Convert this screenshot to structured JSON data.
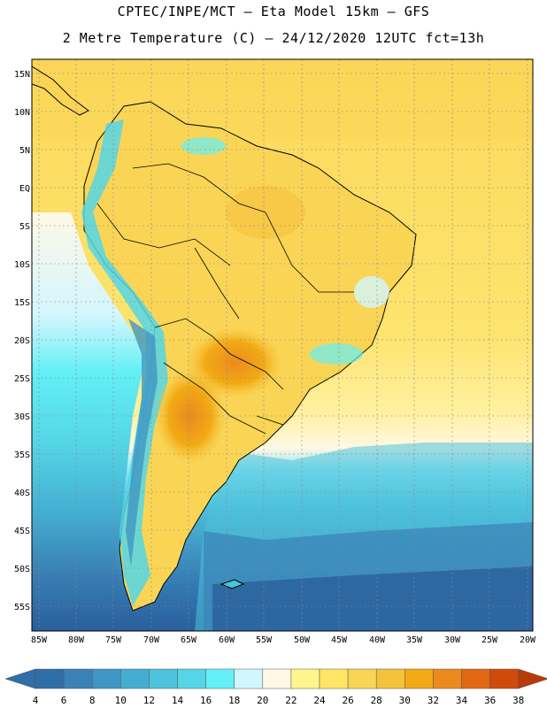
{
  "header": {
    "line1": "CPTEC/INPE/MCT –  Eta Model 15km – GFS",
    "line2": "2 Metre Temperature (C) – 24/12/2020 12UTC fct=13h"
  },
  "map": {
    "lat_labels": [
      "15N",
      "10N",
      "5N",
      "EQ",
      "5S",
      "10S",
      "15S",
      "20S",
      "25S",
      "30S",
      "35S",
      "40S",
      "45S",
      "50S",
      "55S"
    ],
    "lon_labels": [
      "85W",
      "80W",
      "75W",
      "70W",
      "65W",
      "60W",
      "55W",
      "50W",
      "45W",
      "40W",
      "35W",
      "30W",
      "25W",
      "20W"
    ]
  },
  "colorbar": {
    "labels": [
      "4",
      "6",
      "8",
      "10",
      "12",
      "14",
      "16",
      "18",
      "20",
      "22",
      "24",
      "26",
      "28",
      "30",
      "32",
      "34",
      "36",
      "38"
    ],
    "colors": [
      "#2f6ea8",
      "#3a82b6",
      "#3e96c4",
      "#44aed2",
      "#4ec3dc",
      "#55d6e6",
      "#63f0f6",
      "#d2f6ff",
      "#fff8e6",
      "#fff58c",
      "#ffe466",
      "#fad555",
      "#f5c23c",
      "#f2aa14",
      "#ec8a1e",
      "#e26814",
      "#d04a0a",
      "#b83a08"
    ]
  }
}
